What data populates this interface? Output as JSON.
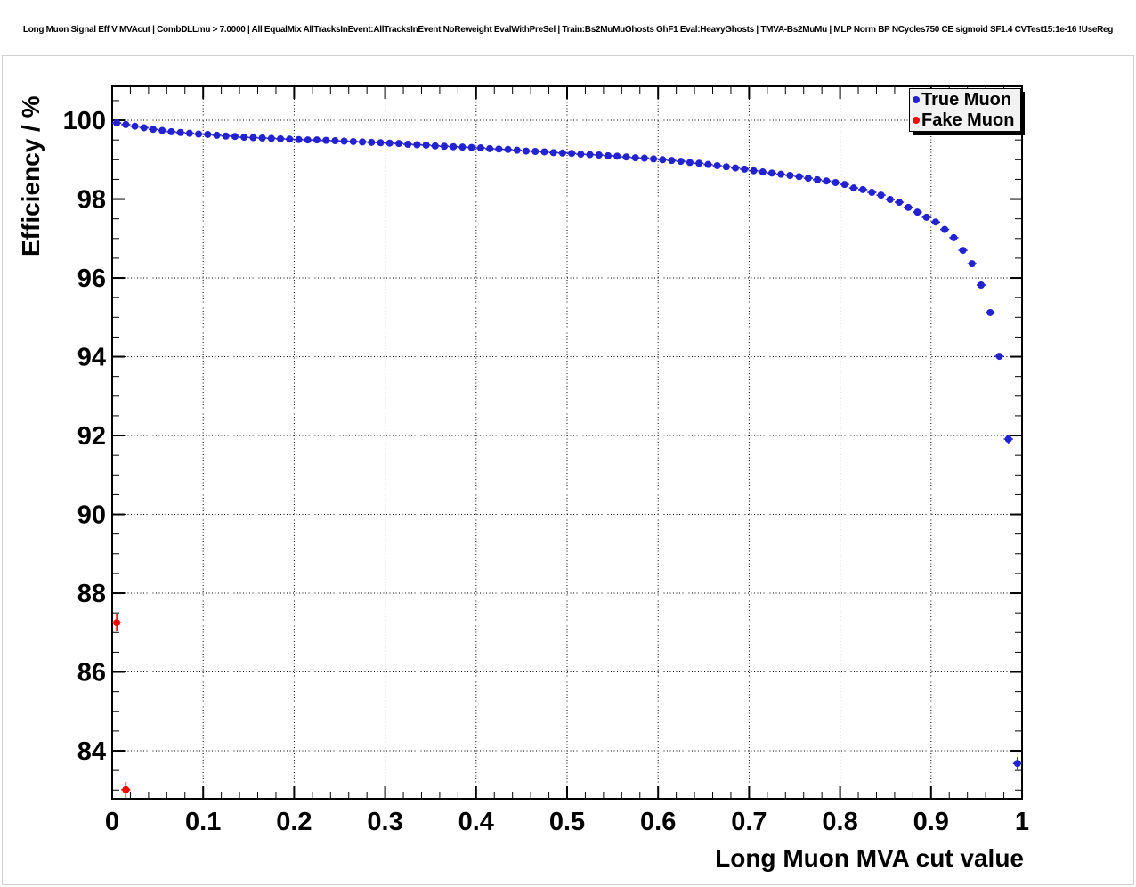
{
  "title": "Long Muon Signal Eff V MVAcut | CombDLLmu > 7.0000 | All EqualMix AllTracksInEvent:AllTracksInEvent NoReweight EvalWithPreSel | Train:Bs2MuMuGhosts GhF1 Eval:HeavyGhosts | TMVA-Bs2MuMu | MLP Norm BP NCycles750 CE sigmoid SF1.4 CVTest15:1e-16 !UseReg",
  "axes": {
    "x": {
      "title": "Long Muon MVA cut value",
      "min": 0,
      "max": 1,
      "major_ticks": [
        0,
        0.1,
        0.2,
        0.3,
        0.4,
        0.5,
        0.6,
        0.7,
        0.8,
        0.9,
        1
      ],
      "tick_labels": [
        "0",
        "0.1",
        "0.2",
        "0.3",
        "0.4",
        "0.5",
        "0.6",
        "0.7",
        "0.8",
        "0.9",
        "1"
      ],
      "minor_step": 0.02
    },
    "y": {
      "title": "Efficiency / %",
      "min": 82.78,
      "max": 100.86,
      "major_ticks": [
        84,
        86,
        88,
        90,
        92,
        94,
        96,
        98,
        100
      ],
      "tick_labels": [
        "84",
        "86",
        "88",
        "90",
        "92",
        "94",
        "96",
        "98",
        "100"
      ],
      "minor_step": 0.5
    }
  },
  "legend": {
    "entries": [
      {
        "label": "True Muon",
        "color": "#2222d2"
      },
      {
        "label": "Fake Muon",
        "color": "#ff0000"
      }
    ]
  },
  "colors": {
    "true_muon": "#2222d2",
    "fake_muon": "#ff0000",
    "frame": "#000000",
    "grid": "#000000",
    "legend_bg": "#f2f2f2"
  },
  "chart_data": {
    "type": "scatter",
    "title": "Long Muon Signal Eff V MVAcut | CombDLLmu > 7.0000 | All EqualMix AllTracksInEvent:AllTracksInEvent NoReweight EvalWithPreSel | Train:Bs2MuMuGhosts GhF1 Eval:HeavyGhosts | TMVA-Bs2MuMu | MLP Norm BP NCycles750 CE sigmoid SF1.4 CVTest15:1e-16 !UseReg",
    "xlabel": "Long Muon MVA cut value",
    "ylabel": "Efficiency / %",
    "xlim": [
      0,
      1
    ],
    "ylim": [
      82.78,
      100.86
    ],
    "grid": true,
    "legend_position": "top-right",
    "x_bin_half_width": 0.005,
    "default_y_err": 0.025,
    "series": [
      {
        "name": "True Muon",
        "color": "#2222d2",
        "marker": "circle",
        "points": [
          [
            0.005,
            99.93
          ],
          [
            0.015,
            99.89
          ],
          [
            0.025,
            99.85
          ],
          [
            0.035,
            99.81
          ],
          [
            0.045,
            99.77
          ],
          [
            0.055,
            99.74
          ],
          [
            0.065,
            99.71
          ],
          [
            0.075,
            99.69
          ],
          [
            0.085,
            99.67
          ],
          [
            0.095,
            99.65
          ],
          [
            0.105,
            99.64
          ],
          [
            0.115,
            99.62
          ],
          [
            0.125,
            99.6
          ],
          [
            0.135,
            99.59
          ],
          [
            0.145,
            99.57
          ],
          [
            0.155,
            99.56
          ],
          [
            0.165,
            99.55
          ],
          [
            0.175,
            99.54
          ],
          [
            0.185,
            99.53
          ],
          [
            0.195,
            99.52
          ],
          [
            0.205,
            99.51
          ],
          [
            0.215,
            99.5
          ],
          [
            0.225,
            99.5
          ],
          [
            0.235,
            99.49
          ],
          [
            0.245,
            99.48
          ],
          [
            0.255,
            99.47
          ],
          [
            0.265,
            99.46
          ],
          [
            0.275,
            99.45
          ],
          [
            0.285,
            99.44
          ],
          [
            0.295,
            99.43
          ],
          [
            0.305,
            99.42
          ],
          [
            0.315,
            99.41
          ],
          [
            0.325,
            99.39
          ],
          [
            0.335,
            99.38
          ],
          [
            0.345,
            99.37
          ],
          [
            0.355,
            99.35
          ],
          [
            0.365,
            99.34
          ],
          [
            0.375,
            99.33
          ],
          [
            0.385,
            99.32
          ],
          [
            0.395,
            99.31
          ],
          [
            0.405,
            99.3
          ],
          [
            0.415,
            99.28
          ],
          [
            0.425,
            99.27
          ],
          [
            0.435,
            99.26
          ],
          [
            0.445,
            99.24
          ],
          [
            0.455,
            99.22
          ],
          [
            0.465,
            99.21
          ],
          [
            0.475,
            99.2
          ],
          [
            0.485,
            99.18
          ],
          [
            0.495,
            99.17
          ],
          [
            0.505,
            99.16
          ],
          [
            0.515,
            99.14
          ],
          [
            0.525,
            99.13
          ],
          [
            0.535,
            99.12
          ],
          [
            0.545,
            99.1
          ],
          [
            0.555,
            99.09
          ],
          [
            0.565,
            99.07
          ],
          [
            0.575,
            99.05
          ],
          [
            0.585,
            99.04
          ],
          [
            0.595,
            99.02
          ],
          [
            0.605,
            99.0
          ],
          [
            0.615,
            98.98
          ],
          [
            0.625,
            98.96
          ],
          [
            0.635,
            98.93
          ],
          [
            0.645,
            98.91
          ],
          [
            0.655,
            98.88
          ],
          [
            0.665,
            98.85
          ],
          [
            0.675,
            98.82
          ],
          [
            0.685,
            98.79
          ],
          [
            0.695,
            98.76
          ],
          [
            0.705,
            98.72
          ],
          [
            0.715,
            98.69
          ],
          [
            0.725,
            98.66
          ],
          [
            0.735,
            98.63
          ],
          [
            0.745,
            98.6
          ],
          [
            0.755,
            98.57
          ],
          [
            0.765,
            98.53
          ],
          [
            0.775,
            98.49
          ],
          [
            0.785,
            98.46
          ],
          [
            0.795,
            98.42
          ],
          [
            0.805,
            98.37
          ],
          [
            0.815,
            98.28
          ],
          [
            0.825,
            98.24
          ],
          [
            0.835,
            98.17
          ],
          [
            0.845,
            98.1
          ],
          [
            0.855,
            97.99
          ],
          [
            0.865,
            97.92
          ],
          [
            0.875,
            97.79
          ],
          [
            0.885,
            97.67
          ],
          [
            0.895,
            97.54
          ],
          [
            0.905,
            97.42
          ],
          [
            0.915,
            97.23
          ],
          [
            0.925,
            97.02
          ],
          [
            0.935,
            96.7
          ],
          [
            0.945,
            96.36
          ],
          [
            0.955,
            95.82,
            0.05
          ],
          [
            0.965,
            95.12,
            0.06
          ],
          [
            0.975,
            94.01,
            0.08
          ],
          [
            0.985,
            91.91,
            0.11
          ],
          [
            0.995,
            83.68,
            0.16
          ]
        ]
      },
      {
        "name": "Fake Muon",
        "color": "#ff0000",
        "marker": "circle",
        "points": [
          [
            0.005,
            87.25,
            0.21
          ],
          [
            0.015,
            83.01,
            0.2
          ]
        ]
      }
    ]
  }
}
